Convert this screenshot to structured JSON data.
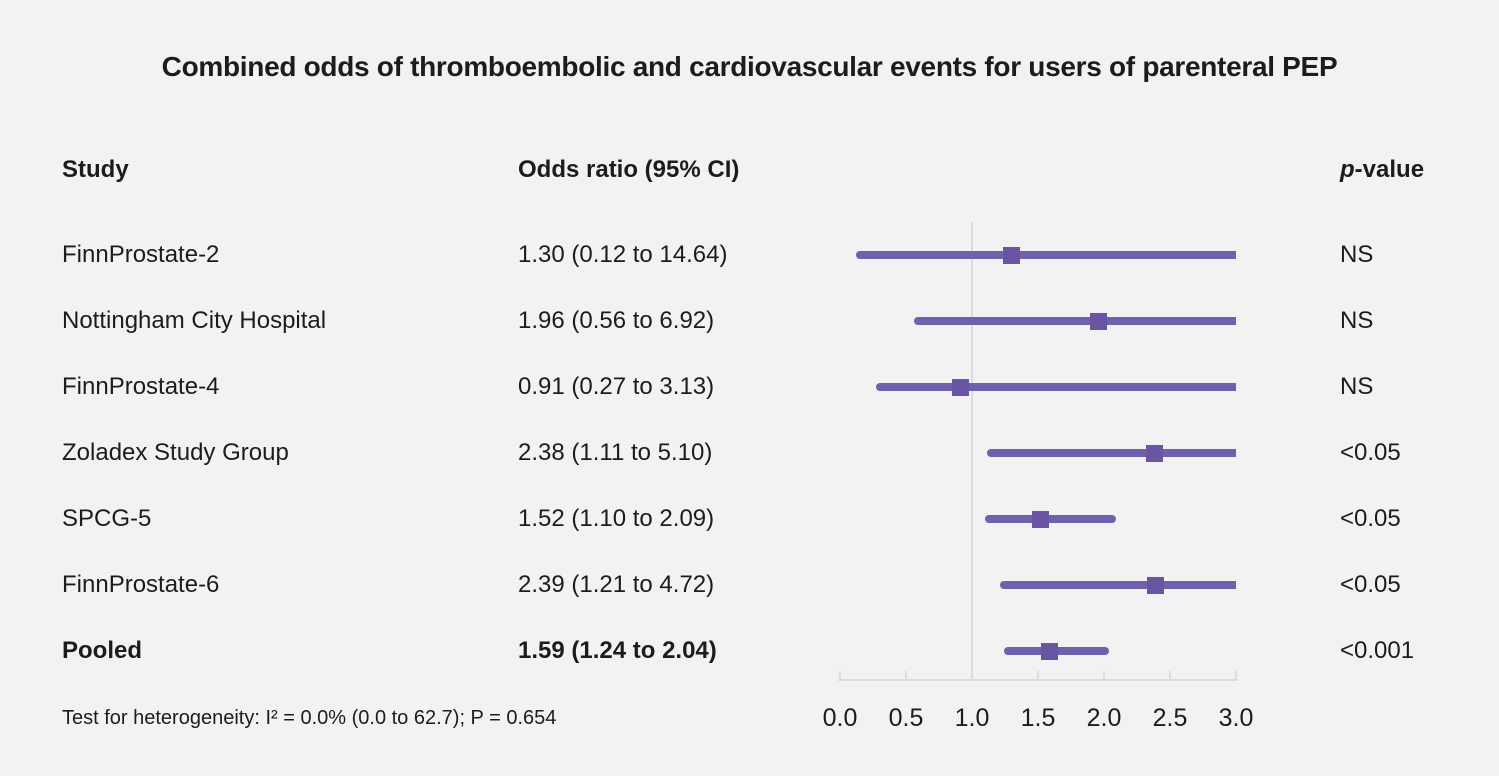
{
  "chart_data": {
    "type": "forest",
    "title": "Combined odds of thromboembolic and cardiovascular events for users of parenteral PEP",
    "columns": {
      "study": "Study",
      "odds_ratio": "Odds ratio (95% CI)",
      "p_italic": "p",
      "p_rest": "-value"
    },
    "axis": {
      "min": 0,
      "max": 3,
      "tick_labels": [
        "0.0",
        "0.5",
        "1.0",
        "1.5",
        "2.0",
        "2.5",
        "3.0"
      ],
      "reference_value": 1.0
    },
    "rows": [
      {
        "study": "FinnProstate-2",
        "or": 1.3,
        "ci_low": 0.12,
        "ci_high": 14.64,
        "or_label": "1.30 (0.12 to 14.64)",
        "p": "NS",
        "pooled": false
      },
      {
        "study": "Nottingham City Hospital",
        "or": 1.96,
        "ci_low": 0.56,
        "ci_high": 6.92,
        "or_label": "1.96 (0.56 to 6.92)",
        "p": "NS",
        "pooled": false
      },
      {
        "study": "FinnProstate-4",
        "or": 0.91,
        "ci_low": 0.27,
        "ci_high": 3.13,
        "or_label": "0.91 (0.27 to 3.13)",
        "p": "NS",
        "pooled": false
      },
      {
        "study": "Zoladex Study Group",
        "or": 2.38,
        "ci_low": 1.11,
        "ci_high": 5.1,
        "or_label": "2.38 (1.11 to 5.10)",
        "p": "<0.05",
        "pooled": false
      },
      {
        "study": "SPCG-5",
        "or": 1.52,
        "ci_low": 1.1,
        "ci_high": 2.09,
        "or_label": "1.52 (1.10 to 2.09)",
        "p": "<0.05",
        "pooled": false
      },
      {
        "study": "FinnProstate-6",
        "or": 2.39,
        "ci_low": 1.21,
        "ci_high": 4.72,
        "or_label": "2.39 (1.21 to 4.72)",
        "p": "<0.05",
        "pooled": false
      },
      {
        "study": "Pooled",
        "or": 1.59,
        "ci_low": 1.24,
        "ci_high": 2.04,
        "or_label": "1.59 (1.24 to 2.04)",
        "p": "<0.001",
        "pooled": true
      }
    ],
    "footnote": "Test for heterogeneity: I² = 0.0% (0.0 to 62.7); P = 0.654",
    "colors": {
      "background": "#f2f2f2",
      "ci_line": "#6f61ab",
      "marker": "#6a55a4",
      "reference_line": "#d9dde1",
      "axis": "#d9dde1",
      "text": "#1c1c1c"
    }
  }
}
